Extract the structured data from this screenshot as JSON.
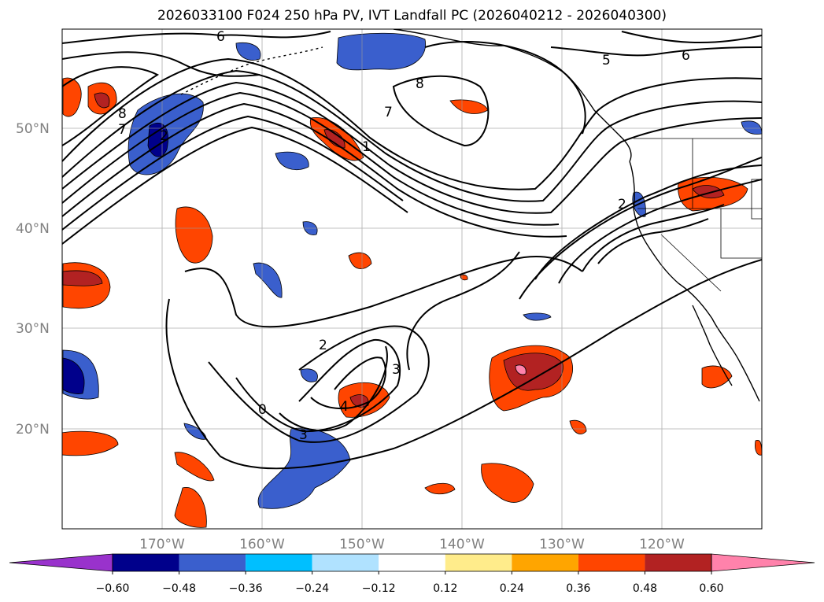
{
  "title": "2026033100 F024 250 hPa PV, IVT Landfall PC (2026040212 - 2026040300)",
  "map": {
    "lat_labels": [
      "50°N",
      "40°N",
      "30°N",
      "20°N"
    ],
    "lon_labels": [
      "170°W",
      "160°W",
      "150°W",
      "140°W",
      "130°W",
      "120°W"
    ]
  },
  "contour_labels": [
    "6",
    "8",
    "7",
    "2",
    "8",
    "7",
    "1",
    "5",
    "6",
    "2",
    "2",
    "3",
    "4",
    "0",
    "3"
  ],
  "colorbar": {
    "ticks": [
      "−0.60",
      "−0.48",
      "−0.36",
      "−0.24",
      "−0.12",
      "0.12",
      "0.24",
      "0.36",
      "0.48",
      "0.60"
    ],
    "colors": [
      "#9932cc",
      "#00008b",
      "#3a5fcd",
      "#00bfff",
      "#b0e2ff",
      "#ffffff",
      "#ffec8b",
      "#ffa500",
      "#ff4500",
      "#b22222",
      "#ff82ab",
      "#ff82ab"
    ]
  }
}
